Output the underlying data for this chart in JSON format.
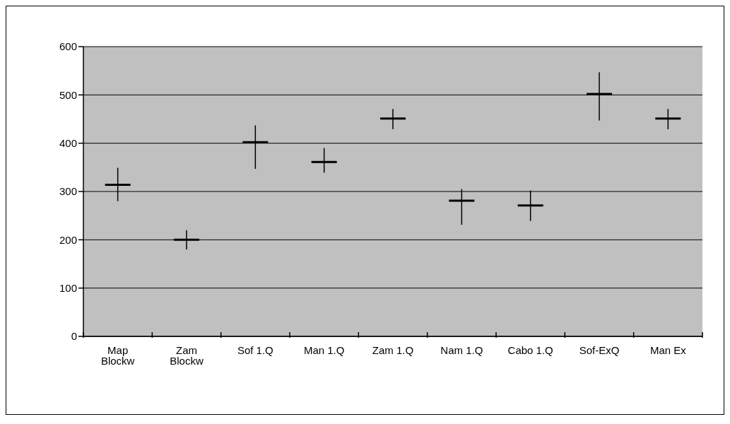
{
  "chart_data": {
    "type": "box",
    "categories": [
      "Map Blockw",
      "Zam Blockw",
      "Sof 1.Q",
      "Man 1.Q",
      "Zam 1.Q",
      "Nam 1.Q",
      "Cabo 1.Q",
      "Sof-ExQ",
      "Man Ex"
    ],
    "boxes": [
      {
        "low": 280,
        "q1": 314,
        "median": 314,
        "q3": 314,
        "high": 349
      },
      {
        "low": 180,
        "q1": 200,
        "median": 200,
        "q3": 200,
        "high": 220
      },
      {
        "low": 347,
        "q1": 402,
        "median": 402,
        "q3": 402,
        "high": 437
      },
      {
        "low": 339,
        "q1": 361,
        "median": 361,
        "q3": 361,
        "high": 390
      },
      {
        "low": 429,
        "q1": 451,
        "median": 451,
        "q3": 451,
        "high": 471
      },
      {
        "low": 231,
        "q1": 281,
        "median": 281,
        "q3": 281,
        "high": 305
      },
      {
        "low": 239,
        "q1": 271,
        "median": 271,
        "q3": 271,
        "high": 302
      },
      {
        "low": 447,
        "q1": 502,
        "median": 502,
        "q3": 502,
        "high": 547
      },
      {
        "low": 429,
        "q1": 451,
        "median": 451,
        "q3": 451,
        "high": 471
      }
    ],
    "color": "#000000",
    "ylim": [
      0,
      600
    ],
    "yticks": [
      0,
      100,
      200,
      300,
      400,
      500,
      600
    ],
    "grid": "y"
  }
}
